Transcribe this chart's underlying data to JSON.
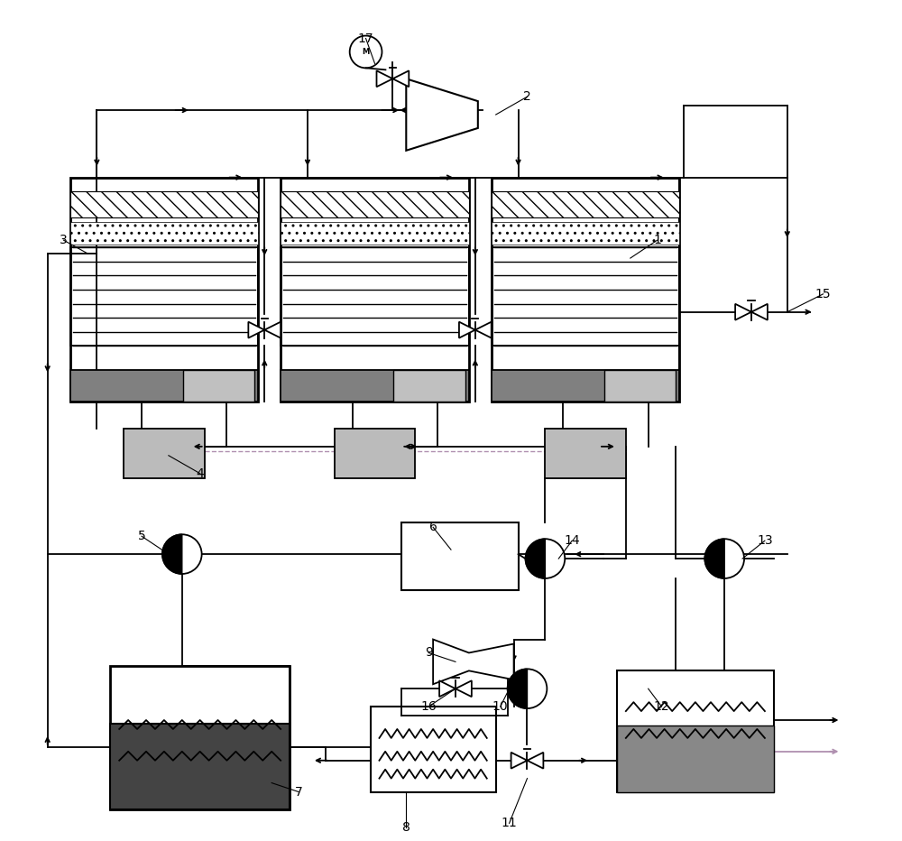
{
  "bg_color": "#ffffff",
  "line_color": "#000000",
  "dark_gray": "#444444",
  "mid_gray": "#888888",
  "light_gray": "#bbbbbb",
  "green_gray": "#7a9a7a",
  "purple_line": "#b090b0",
  "figsize": [
    10.0,
    9.32
  ],
  "dpi": 100
}
